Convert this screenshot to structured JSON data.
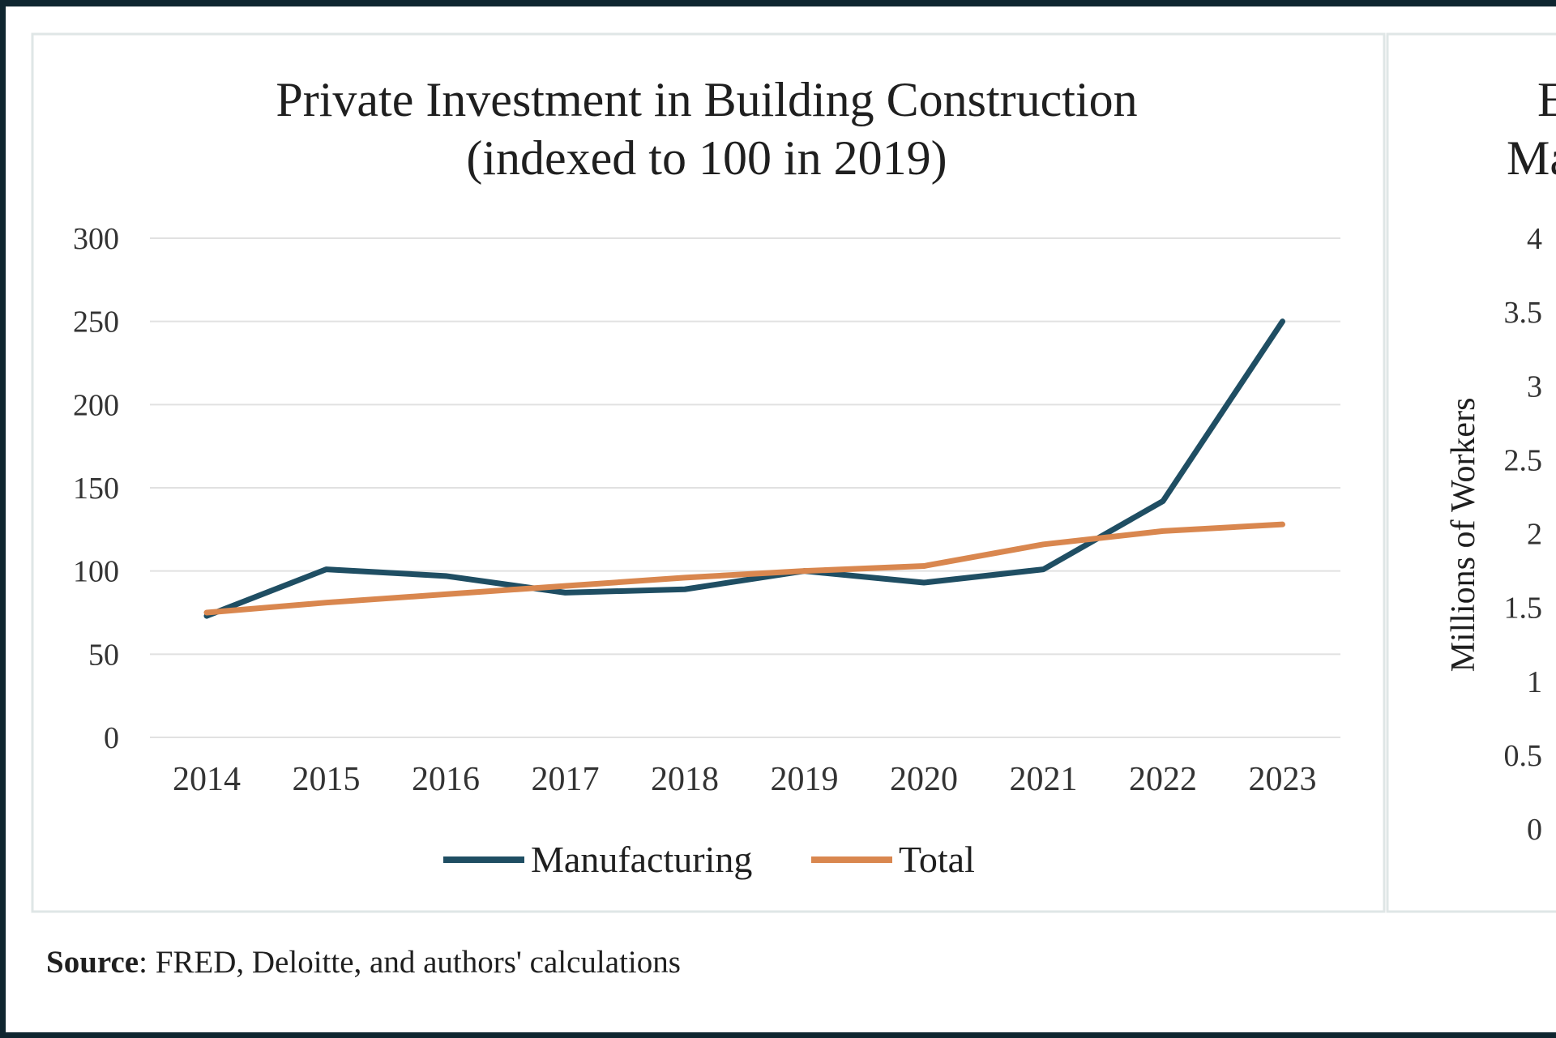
{
  "left_chart": {
    "title_line1": "Private Investment in Building Construction",
    "title_line2": "(indexed to 100 in 2019)",
    "legend": [
      "Manufacturing",
      "Total"
    ]
  },
  "right_chart": {
    "title_fragment_line1": "E",
    "title_fragment_line2": "Ma",
    "ylabel": "Millions of Workers",
    "y_ticks": [
      "4",
      "3.5",
      "3",
      "2.5",
      "2",
      "1.5",
      "1",
      "0.5",
      "0"
    ]
  },
  "source": {
    "label": "Source",
    "text": ": FRED, Deloitte, and authors' calculations"
  },
  "colors": {
    "manufacturing": "#1f4e63",
    "total": "#d9874f",
    "grid": "#e1e1e1",
    "panel_border": "#dfe6e6"
  },
  "chart_data": [
    {
      "type": "line",
      "title": "Private Investment in Building Construction (indexed to 100 in 2019)",
      "xlabel": "",
      "ylabel": "",
      "categories": [
        "2014",
        "2015",
        "2016",
        "2017",
        "2018",
        "2019",
        "2020",
        "2021",
        "2022",
        "2023"
      ],
      "ylim": [
        0,
        300
      ],
      "yticks": [
        0,
        50,
        100,
        150,
        200,
        250,
        300
      ],
      "grid": true,
      "legend_position": "bottom",
      "series": [
        {
          "name": "Manufacturing",
          "color": "#1f4e63",
          "values": [
            73,
            101,
            97,
            87,
            89,
            100,
            93,
            101,
            142,
            250
          ]
        },
        {
          "name": "Total",
          "color": "#d9874f",
          "values": [
            75,
            81,
            86,
            91,
            96,
            100,
            103,
            116,
            124,
            128
          ]
        }
      ]
    },
    {
      "type": "line",
      "title": "",
      "ylabel": "Millions of Workers",
      "ylim": [
        0,
        4
      ],
      "yticks": [
        0,
        0.5,
        1,
        1.5,
        2,
        2.5,
        3,
        3.5,
        4
      ],
      "grid": false,
      "series": []
    }
  ]
}
